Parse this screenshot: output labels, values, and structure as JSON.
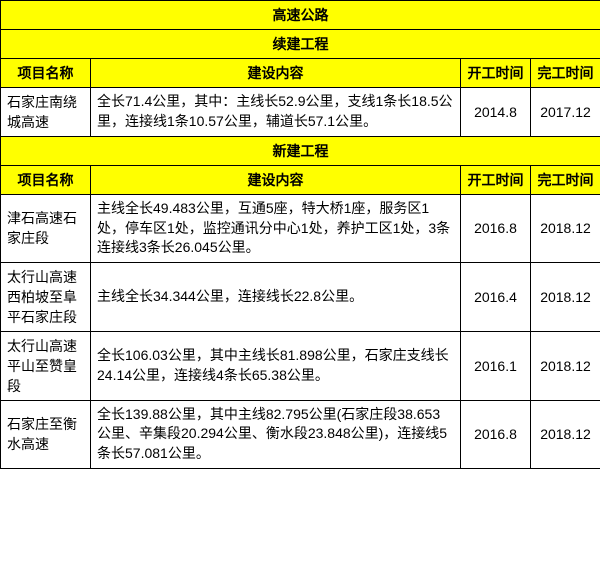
{
  "colors": {
    "header_bg": "#ffff00",
    "border": "#000000",
    "text": "#000000"
  },
  "title": "高速公路",
  "sections": [
    {
      "subtitle": "续建工程",
      "headers": {
        "name": "项目名称",
        "content": "建设内容",
        "start": "开工时间",
        "end": "完工时间"
      },
      "rows": [
        {
          "name": "石家庄南绕城高速",
          "content": "全长71.4公里，其中：主线长52.9公里，支线1条长18.5公里，连接线1条10.57公里，辅道长57.1公里。",
          "start": "2014.8",
          "end": "2017.12"
        }
      ]
    },
    {
      "subtitle": "新建工程",
      "headers": {
        "name": "项目名称",
        "content": "建设内容",
        "start": "开工时间",
        "end": "完工时间"
      },
      "rows": [
        {
          "name": "津石高速石家庄段",
          "content": "主线全长49.483公里，互通5座，特大桥1座，服务区1处，停车区1处，监控通讯分中心1处，养护工区1处，3条连接线3条长26.045公里。",
          "start": "2016.8",
          "end": "2018.12"
        },
        {
          "name": "太行山高速西柏坡至阜平石家庄段",
          "content": "主线全长34.344公里，连接线长22.8公里。",
          "start": "2016.4",
          "end": "2018.12"
        },
        {
          "name": "太行山高速平山至赞皇段",
          "content": "全长106.03公里，其中主线长81.898公里，石家庄支线长24.14公里，连接线4条长65.38公里。",
          "start": "2016.1",
          "end": "2018.12"
        },
        {
          "name": "石家庄至衡水高速",
          "content": "全长139.88公里，其中主线82.795公里(石家庄段38.653公里、辛集段20.294公里、衡水段23.848公里)，连接线5条长57.081公里。",
          "start": "2016.8",
          "end": "2018.12"
        }
      ]
    }
  ]
}
